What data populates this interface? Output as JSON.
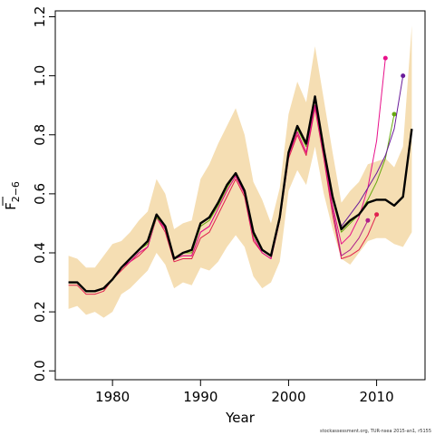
{
  "chart_data": {
    "type": "line",
    "title": "",
    "xlabel": "Year",
    "ylabel_main": "F",
    "ylabel_sub": "2−6",
    "xlim": [
      1973.5,
      2015.5
    ],
    "ylim": [
      -0.03,
      1.22
    ],
    "x_ticks": [
      1980,
      1990,
      2000,
      2010
    ],
    "y_ticks": [
      0.0,
      0.2,
      0.4,
      0.6,
      0.8,
      1.0,
      1.2
    ],
    "y_tick_labels": [
      "0.0",
      "0.2",
      "0.4",
      "0.6",
      "0.8",
      "1.0",
      "1.2"
    ],
    "band_color": "#F5DEB3",
    "band": {
      "x": [
        1975,
        1976,
        1977,
        1978,
        1979,
        1980,
        1981,
        1982,
        1983,
        1984,
        1985,
        1986,
        1987,
        1988,
        1989,
        1990,
        1991,
        1992,
        1993,
        1994,
        1995,
        1996,
        1997,
        1998,
        1999,
        2000,
        2001,
        2002,
        2003,
        2004,
        2005,
        2006,
        2007,
        2008,
        2009,
        2010,
        2011,
        2012,
        2013,
        2014
      ],
      "lower": [
        0.21,
        0.22,
        0.19,
        0.2,
        0.18,
        0.2,
        0.26,
        0.28,
        0.31,
        0.34,
        0.4,
        0.36,
        0.28,
        0.3,
        0.29,
        0.35,
        0.34,
        0.37,
        0.42,
        0.46,
        0.42,
        0.32,
        0.28,
        0.3,
        0.37,
        0.61,
        0.68,
        0.63,
        0.76,
        0.6,
        0.48,
        0.38,
        0.36,
        0.4,
        0.44,
        0.45,
        0.45,
        0.43,
        0.42,
        0.47
      ],
      "upper": [
        0.39,
        0.38,
        0.35,
        0.35,
        0.39,
        0.43,
        0.44,
        0.47,
        0.51,
        0.54,
        0.65,
        0.6,
        0.48,
        0.5,
        0.51,
        0.65,
        0.7,
        0.77,
        0.83,
        0.89,
        0.8,
        0.64,
        0.58,
        0.5,
        0.62,
        0.87,
        0.98,
        0.91,
        1.1,
        0.92,
        0.74,
        0.57,
        0.61,
        0.64,
        0.7,
        0.71,
        0.72,
        0.69,
        0.76,
        1.17
      ]
    },
    "series": [
      {
        "color": "#000000",
        "width": 2.4,
        "x": [
          1975,
          1976,
          1977,
          1978,
          1979,
          1980,
          1981,
          1982,
          1983,
          1984,
          1985,
          1986,
          1987,
          1988,
          1989,
          1990,
          1991,
          1992,
          1993,
          1994,
          1995,
          1996,
          1997,
          1998,
          1999,
          2000,
          2001,
          2002,
          2003,
          2004,
          2005,
          2006,
          2007,
          2008,
          2009,
          2010,
          2011,
          2012,
          2013,
          2014
        ],
        "y": [
          0.3,
          0.3,
          0.27,
          0.27,
          0.28,
          0.31,
          0.35,
          0.38,
          0.41,
          0.44,
          0.53,
          0.49,
          0.38,
          0.4,
          0.41,
          0.5,
          0.52,
          0.57,
          0.63,
          0.67,
          0.61,
          0.47,
          0.41,
          0.39,
          0.52,
          0.74,
          0.83,
          0.77,
          0.93,
          0.75,
          0.59,
          0.48,
          0.51,
          0.53,
          0.57,
          0.58,
          0.58,
          0.56,
          0.59,
          0.82
        ]
      },
      {
        "color": "#E0224F",
        "width": 1,
        "x": [
          1975,
          1976,
          1977,
          1978,
          1979,
          1980,
          1981,
          1982,
          1983,
          1984,
          1985,
          1986,
          1987,
          1988,
          1989,
          1990,
          1991,
          1992,
          1993,
          1994,
          1995,
          1996,
          1997,
          1998,
          1999,
          2000,
          2001,
          2002,
          2003,
          2004,
          2005,
          2006,
          2007,
          2008,
          2009,
          2010
        ],
        "y": [
          0.29,
          0.29,
          0.26,
          0.26,
          0.27,
          0.31,
          0.34,
          0.37,
          0.39,
          0.42,
          0.52,
          0.47,
          0.37,
          0.38,
          0.38,
          0.45,
          0.47,
          0.53,
          0.59,
          0.65,
          0.59,
          0.44,
          0.4,
          0.38,
          0.51,
          0.72,
          0.8,
          0.73,
          0.89,
          0.72,
          0.53,
          0.38,
          0.39,
          0.41,
          0.46,
          0.53
        ],
        "end_marker": true
      },
      {
        "color": "#B0208A",
        "width": 1,
        "x": [
          1975,
          1976,
          1977,
          1978,
          1979,
          1980,
          1981,
          1982,
          1983,
          1984,
          1985,
          1986,
          1987,
          1988,
          1989,
          1990,
          1991,
          1992,
          1993,
          1994,
          1995,
          1996,
          1997,
          1998,
          1999,
          2000,
          2001,
          2002,
          2003,
          2004,
          2005,
          2006,
          2007,
          2008,
          2009
        ],
        "y": [
          0.3,
          0.3,
          0.27,
          0.27,
          0.28,
          0.31,
          0.35,
          0.37,
          0.4,
          0.42,
          0.52,
          0.48,
          0.38,
          0.39,
          0.39,
          0.47,
          0.49,
          0.55,
          0.61,
          0.66,
          0.6,
          0.45,
          0.4,
          0.38,
          0.51,
          0.73,
          0.81,
          0.74,
          0.9,
          0.73,
          0.55,
          0.39,
          0.41,
          0.45,
          0.51
        ],
        "end_marker": true
      },
      {
        "color": "#E8108A",
        "width": 1,
        "x": [
          1975,
          1976,
          1977,
          1978,
          1979,
          1980,
          1981,
          1982,
          1983,
          1984,
          1985,
          1986,
          1987,
          1988,
          1989,
          1990,
          1991,
          1992,
          1993,
          1994,
          1995,
          1996,
          1997,
          1998,
          1999,
          2000,
          2001,
          2002,
          2003,
          2004,
          2005,
          2006,
          2007,
          2008,
          2009,
          2010,
          2011
        ],
        "y": [
          0.3,
          0.3,
          0.27,
          0.27,
          0.28,
          0.31,
          0.35,
          0.37,
          0.4,
          0.42,
          0.52,
          0.48,
          0.38,
          0.39,
          0.39,
          0.47,
          0.49,
          0.55,
          0.61,
          0.66,
          0.6,
          0.45,
          0.4,
          0.38,
          0.51,
          0.73,
          0.81,
          0.74,
          0.9,
          0.73,
          0.56,
          0.43,
          0.46,
          0.52,
          0.62,
          0.78,
          1.06
        ],
        "end_marker": true
      },
      {
        "color": "#66A80F",
        "width": 1,
        "x": [
          1975,
          1976,
          1977,
          1978,
          1979,
          1980,
          1981,
          1982,
          1983,
          1984,
          1985,
          1986,
          1987,
          1988,
          1989,
          1990,
          1991,
          1992,
          1993,
          1994,
          1995,
          1996,
          1997,
          1998,
          1999,
          2000,
          2001,
          2002,
          2003,
          2004,
          2005,
          2006,
          2007,
          2008,
          2009,
          2010,
          2011,
          2012
        ],
        "y": [
          0.3,
          0.3,
          0.27,
          0.27,
          0.28,
          0.31,
          0.35,
          0.38,
          0.41,
          0.43,
          0.52,
          0.49,
          0.38,
          0.4,
          0.4,
          0.49,
          0.51,
          0.56,
          0.62,
          0.67,
          0.61,
          0.46,
          0.41,
          0.39,
          0.51,
          0.74,
          0.82,
          0.76,
          0.92,
          0.74,
          0.58,
          0.47,
          0.5,
          0.53,
          0.58,
          0.64,
          0.72,
          0.87
        ],
        "end_marker": true
      },
      {
        "color": "#6A1B9A",
        "width": 1,
        "x": [
          1975,
          1976,
          1977,
          1978,
          1979,
          1980,
          1981,
          1982,
          1983,
          1984,
          1985,
          1986,
          1987,
          1988,
          1989,
          1990,
          1991,
          1992,
          1993,
          1994,
          1995,
          1996,
          1997,
          1998,
          1999,
          2000,
          2001,
          2002,
          2003,
          2004,
          2005,
          2006,
          2007,
          2008,
          2009,
          2010,
          2011,
          2012,
          2013
        ],
        "y": [
          0.3,
          0.3,
          0.27,
          0.27,
          0.28,
          0.31,
          0.35,
          0.38,
          0.41,
          0.44,
          0.53,
          0.49,
          0.38,
          0.4,
          0.41,
          0.5,
          0.52,
          0.57,
          0.63,
          0.67,
          0.61,
          0.47,
          0.41,
          0.39,
          0.52,
          0.74,
          0.83,
          0.77,
          0.93,
          0.75,
          0.59,
          0.49,
          0.53,
          0.57,
          0.62,
          0.67,
          0.73,
          0.82,
          1.0
        ],
        "end_marker": true
      }
    ]
  },
  "footer": "stockassessment.org, TUR-nsea 2015-an1, r5155"
}
